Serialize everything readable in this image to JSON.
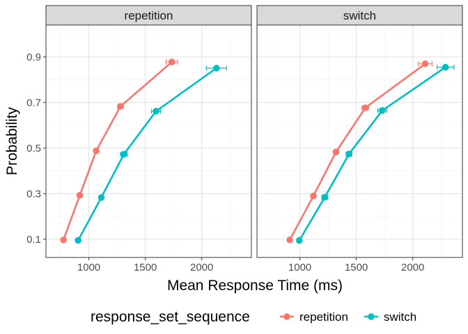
{
  "chart_data": {
    "type": "line",
    "xlabel": "Mean Response Time (ms)",
    "ylabel": "Probability",
    "xlim": [
      620,
      2440
    ],
    "ylim": [
      0.02,
      1.04
    ],
    "xticks": [
      1000,
      1500,
      2000
    ],
    "xtick_labels": [
      "1000",
      "1500",
      "2000"
    ],
    "yticks": [
      0.1,
      0.3,
      0.5,
      0.7,
      0.9
    ],
    "ytick_labels": [
      "0.1",
      "0.3",
      "0.5",
      "0.7",
      "0.9"
    ],
    "grid": true,
    "legend": {
      "title": "response_set_sequence",
      "position": "bottom",
      "entries": [
        {
          "label": "repetition",
          "color": "#F8766D"
        },
        {
          "label": "switch",
          "color": "#00BFC4"
        }
      ]
    },
    "panels": [
      {
        "label": "repetition",
        "series": [
          {
            "name": "repetition",
            "color": "#F8766D",
            "points": [
              {
                "x": 775,
                "y": 0.097,
                "err": 0
              },
              {
                "x": 920,
                "y": 0.293,
                "err": 0
              },
              {
                "x": 1065,
                "y": 0.488,
                "err": 0
              },
              {
                "x": 1280,
                "y": 0.683,
                "err": 25
              },
              {
                "x": 1735,
                "y": 0.878,
                "err": 50
              }
            ]
          },
          {
            "name": "switch",
            "color": "#00BFC4",
            "points": [
              {
                "x": 905,
                "y": 0.095,
                "err": 0
              },
              {
                "x": 1110,
                "y": 0.283,
                "err": 0
              },
              {
                "x": 1310,
                "y": 0.473,
                "err": 30
              },
              {
                "x": 1595,
                "y": 0.662,
                "err": 40
              },
              {
                "x": 2130,
                "y": 0.851,
                "err": 90
              }
            ]
          }
        ]
      },
      {
        "label": "switch",
        "series": [
          {
            "name": "repetition",
            "color": "#F8766D",
            "points": [
              {
                "x": 910,
                "y": 0.097,
                "err": 0
              },
              {
                "x": 1120,
                "y": 0.29,
                "err": 0
              },
              {
                "x": 1320,
                "y": 0.483,
                "err": 20
              },
              {
                "x": 1580,
                "y": 0.677,
                "err": 30
              },
              {
                "x": 2110,
                "y": 0.87,
                "err": 60
              }
            ]
          },
          {
            "name": "switch",
            "color": "#00BFC4",
            "points": [
              {
                "x": 995,
                "y": 0.095,
                "err": 0
              },
              {
                "x": 1220,
                "y": 0.284,
                "err": 25
              },
              {
                "x": 1435,
                "y": 0.474,
                "err": 25
              },
              {
                "x": 1730,
                "y": 0.665,
                "err": 40
              },
              {
                "x": 2290,
                "y": 0.855,
                "err": 75
              }
            ]
          }
        ]
      }
    ]
  }
}
